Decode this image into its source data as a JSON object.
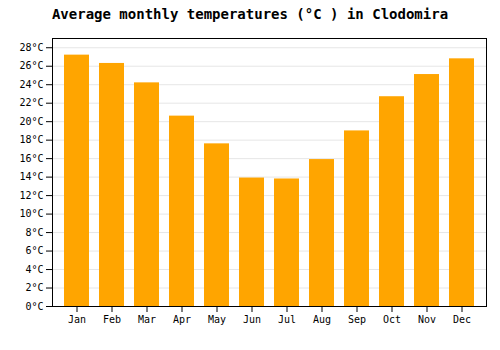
{
  "chart_data": {
    "type": "bar",
    "title": "Average monthly temperatures (°C ) in Clodomira",
    "categories": [
      "Jan",
      "Feb",
      "Mar",
      "Apr",
      "May",
      "Jun",
      "Jul",
      "Aug",
      "Sep",
      "Oct",
      "Nov",
      "Dec"
    ],
    "values": [
      27.2,
      26.3,
      24.2,
      20.6,
      17.6,
      13.9,
      13.8,
      15.9,
      19.0,
      22.7,
      25.1,
      26.8
    ],
    "color": "#FFA500",
    "ylim": [
      0,
      29
    ],
    "yticks": [
      {
        "value": 0,
        "label": "0°C"
      },
      {
        "value": 2,
        "label": "2°C"
      },
      {
        "value": 4,
        "label": "4°C"
      },
      {
        "value": 6,
        "label": "6°C"
      },
      {
        "value": 8,
        "label": "8°C"
      },
      {
        "value": 10,
        "label": "10°C"
      },
      {
        "value": 12,
        "label": "12°C"
      },
      {
        "value": 14,
        "label": "14°C"
      },
      {
        "value": 16,
        "label": "16°C"
      },
      {
        "value": 18,
        "label": "18°C"
      },
      {
        "value": 20,
        "label": "20°C"
      },
      {
        "value": 22,
        "label": "22°C"
      },
      {
        "value": 24,
        "label": "24°C"
      },
      {
        "value": 26,
        "label": "26°C"
      },
      {
        "value": 28,
        "label": "28°C"
      }
    ],
    "grid": true
  }
}
